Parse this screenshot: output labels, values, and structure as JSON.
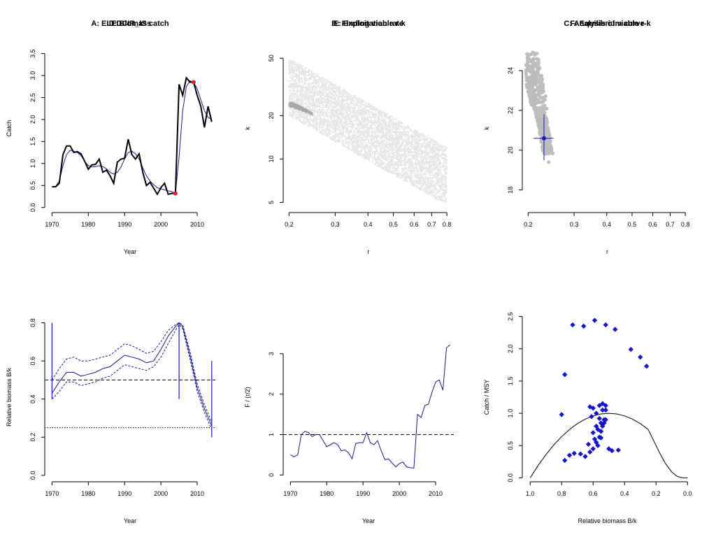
{
  "colors": {
    "catch": "#000000",
    "smooth": "#1a1a8c",
    "red": "#e0202a",
    "blue": "#1515c8",
    "lightgrey": "#e6e6e6",
    "midgrey": "#a8a8a8",
    "viable": "#bdbdbd"
  },
  "chart_data": [
    {
      "id": "A",
      "type": "line",
      "title": "A:  ELEDCIR_IS catch",
      "xlabel": "Year",
      "ylabel": "Catch",
      "xlim": [
        1968,
        2015
      ],
      "ylim": [
        -0.1,
        3.7
      ],
      "xticks": [
        1970,
        1980,
        1990,
        2000,
        2010
      ],
      "yticks": [
        0.0,
        0.5,
        1.0,
        1.5,
        2.0,
        2.5,
        3.0,
        3.5
      ],
      "ytick_labels": [
        "0.0",
        "0.5",
        "1.0",
        "1.5",
        "2.0",
        "2.5",
        "3.0",
        "3.5"
      ],
      "series": [
        {
          "kind": "catch",
          "x": [
            1970,
            1971,
            1972,
            1973,
            1974,
            1975,
            1976,
            1977,
            1978,
            1979,
            1980,
            1981,
            1982,
            1983,
            1984,
            1985,
            1986,
            1987,
            1988,
            1989,
            1990,
            1991,
            1992,
            1993,
            1994,
            1995,
            1996,
            1997,
            1998,
            1999,
            2000,
            2001,
            2002,
            2003,
            2004,
            2005,
            2006,
            2007,
            2008,
            2009,
            2010,
            2011,
            2012,
            2013,
            2014
          ],
          "y": [
            0.47,
            0.47,
            0.55,
            1.2,
            1.4,
            1.4,
            1.25,
            1.27,
            1.22,
            1.05,
            0.87,
            0.97,
            0.98,
            1.1,
            0.8,
            0.85,
            0.72,
            0.55,
            1.03,
            1.1,
            1.12,
            1.55,
            1.2,
            1.1,
            1.22,
            0.8,
            0.5,
            0.57,
            0.44,
            0.3,
            0.45,
            0.55,
            0.3,
            0.32,
            0.32,
            2.8,
            2.55,
            2.95,
            2.85,
            2.85,
            2.55,
            2.3,
            1.82,
            2.3,
            1.95
          ]
        },
        {
          "kind": "smooth",
          "x": [
            1970,
            1971,
            1972,
            1973,
            1974,
            1975,
            1976,
            1977,
            1978,
            1979,
            1980,
            1981,
            1982,
            1983,
            1984,
            1985,
            1986,
            1987,
            1988,
            1989,
            1990,
            1991,
            1992,
            1993,
            1994,
            1995,
            1996,
            1997,
            1998,
            1999,
            2000,
            2001,
            2002,
            2003,
            2004,
            2005,
            2006,
            2007,
            2008,
            2009,
            2010,
            2011,
            2012,
            2013,
            2014
          ],
          "y": [
            0.47,
            0.48,
            0.6,
            0.95,
            1.2,
            1.3,
            1.28,
            1.25,
            1.18,
            1.05,
            0.95,
            0.92,
            0.93,
            0.95,
            0.93,
            0.88,
            0.8,
            0.76,
            0.8,
            0.92,
            1.1,
            1.25,
            1.28,
            1.22,
            1.1,
            0.9,
            0.72,
            0.6,
            0.52,
            0.45,
            0.42,
            0.4,
            0.38,
            0.36,
            0.32,
            1.15,
            2.2,
            2.75,
            2.88,
            2.85,
            2.7,
            2.45,
            2.2,
            2.05,
            2.0
          ]
        }
      ],
      "points": [
        {
          "x": 2004,
          "y": 0.32
        },
        {
          "x": 2009,
          "y": 2.85
        }
      ]
    },
    {
      "id": "B",
      "type": "scatter",
      "title": "B: Finding viable r-k",
      "xlabel": "r",
      "ylabel": "k",
      "xscale": "log",
      "yscale": "log",
      "xlim": [
        0.19,
        0.85
      ],
      "ylim": [
        4.3,
        62
      ],
      "xticks": [
        0.2,
        0.3,
        0.4,
        0.5,
        0.6,
        0.7,
        0.8
      ],
      "xtick_labels": [
        "0.2",
        "0.3",
        "0.4",
        "0.5",
        "0.6",
        "0.7",
        "0.8"
      ],
      "yticks": [
        5,
        10,
        20,
        50
      ],
      "cloud": {
        "r_range": [
          0.2,
          0.8
        ],
        "k_upper_at": [
          [
            0.2,
            50
          ],
          [
            0.8,
            12
          ]
        ],
        "k_lower_at": [
          [
            0.2,
            20
          ],
          [
            0.8,
            4.8
          ]
        ]
      },
      "viable": {
        "r_range": [
          0.2,
          0.245
        ],
        "k_range": [
          20.5,
          24.5
        ]
      }
    },
    {
      "id": "C",
      "type": "scatter",
      "title": "C: Analysis of viable r-k",
      "xlabel": "r",
      "ylabel": "k",
      "xscale": "log",
      "xlim": [
        0.19,
        0.85
      ],
      "ylim": [
        16.9,
        25.3
      ],
      "xticks": [
        0.2,
        0.3,
        0.4,
        0.5,
        0.6,
        0.7,
        0.8
      ],
      "xtick_labels": [
        "0.2",
        "0.3",
        "0.4",
        "0.5",
        "0.6",
        "0.7",
        "0.8"
      ],
      "yticks": [
        18,
        20,
        22,
        24
      ],
      "estimate": {
        "r": 0.23,
        "k": 20.6,
        "r_ci": [
          0.21,
          0.25
        ],
        "k_ci": [
          19.5,
          21.8
        ]
      }
    },
    {
      "id": "D",
      "type": "line",
      "title": "D: Biomass",
      "xlabel": "Year",
      "ylabel": "Relative biomass B/k",
      "xlim": [
        1968,
        2015
      ],
      "ylim": [
        -0.03,
        0.85
      ],
      "xticks": [
        1970,
        1980,
        1990,
        2000,
        2010
      ],
      "yticks": [
        0.0,
        0.2,
        0.4,
        0.6,
        0.8
      ],
      "ytick_labels": [
        "0.0",
        "0.2",
        "0.4",
        "0.6",
        "0.8"
      ],
      "x": [
        1970,
        1972,
        1974,
        1976,
        1978,
        1980,
        1982,
        1984,
        1986,
        1988,
        1990,
        1992,
        1994,
        1996,
        1998,
        2000,
        2002,
        2004,
        2005,
        2006,
        2008,
        2010,
        2012,
        2014
      ],
      "median": [
        0.43,
        0.49,
        0.54,
        0.54,
        0.52,
        0.53,
        0.54,
        0.56,
        0.57,
        0.6,
        0.63,
        0.62,
        0.61,
        0.59,
        0.6,
        0.66,
        0.73,
        0.78,
        0.8,
        0.78,
        0.63,
        0.46,
        0.35,
        0.26
      ],
      "upper": [
        0.5,
        0.56,
        0.61,
        0.62,
        0.6,
        0.6,
        0.61,
        0.62,
        0.63,
        0.66,
        0.69,
        0.68,
        0.66,
        0.64,
        0.65,
        0.7,
        0.76,
        0.79,
        0.8,
        0.79,
        0.65,
        0.48,
        0.37,
        0.28
      ],
      "lower": [
        0.4,
        0.44,
        0.49,
        0.49,
        0.47,
        0.48,
        0.49,
        0.51,
        0.52,
        0.55,
        0.58,
        0.57,
        0.56,
        0.55,
        0.57,
        0.62,
        0.69,
        0.76,
        0.79,
        0.77,
        0.61,
        0.44,
        0.33,
        0.24
      ],
      "prior_ranges": [
        {
          "x": 1970,
          "range": [
            0.4,
            0.8
          ]
        },
        {
          "x": 2005,
          "range": [
            0.4,
            0.8
          ]
        },
        {
          "x": 2014,
          "range": [
            0.2,
            0.6
          ]
        }
      ],
      "hlines": [
        {
          "y": 0.5,
          "style": "dashed"
        },
        {
          "y": 0.25,
          "style": "dotted"
        }
      ]
    },
    {
      "id": "E",
      "type": "line",
      "title": "E: Exploitation rate",
      "xlabel": "Year",
      "ylabel": "F / (r/2)",
      "xlim": [
        1968,
        2015
      ],
      "ylim": [
        -0.15,
        4.0
      ],
      "xticks": [
        1970,
        1980,
        1990,
        2000,
        2010
      ],
      "yticks": [
        0,
        1,
        2,
        3
      ],
      "x": [
        1970,
        1971,
        1972,
        1973,
        1974,
        1975,
        1976,
        1977,
        1978,
        1979,
        1980,
        1981,
        1982,
        1983,
        1984,
        1985,
        1986,
        1987,
        1988,
        1989,
        1990,
        1991,
        1992,
        1993,
        1994,
        1995,
        1996,
        1997,
        1998,
        1999,
        2000,
        2001,
        2002,
        2003,
        2004,
        2005,
        2006,
        2007,
        2008,
        2009,
        2010,
        2011,
        2012,
        2013,
        2014
      ],
      "y": [
        0.5,
        0.45,
        0.5,
        1.0,
        1.08,
        1.05,
        0.95,
        1.0,
        1.0,
        0.85,
        0.7,
        0.75,
        0.8,
        0.75,
        0.6,
        0.62,
        0.55,
        0.4,
        0.78,
        0.8,
        0.8,
        1.05,
        0.8,
        0.75,
        0.85,
        0.6,
        0.38,
        0.4,
        0.3,
        0.2,
        0.28,
        0.32,
        0.2,
        0.18,
        0.17,
        1.5,
        1.42,
        1.72,
        1.75,
        2.05,
        2.3,
        2.35,
        2.1,
        3.15,
        3.22
      ],
      "hline": {
        "y": 1.0,
        "style": "dashed"
      }
    },
    {
      "id": "F",
      "type": "scatter",
      "title": "F: Equilibrium curve",
      "xlabel": "Relative biomass B/k",
      "ylabel": "Catch / MSY",
      "xlim": [
        1.05,
        -0.03
      ],
      "ylim": [
        -0.05,
        2.55
      ],
      "xticks": [
        1.0,
        0.8,
        0.6,
        0.4,
        0.2,
        0.0
      ],
      "xtick_labels": [
        "1.0",
        "0.8",
        "0.6",
        "0.4",
        "0.2",
        "0.0"
      ],
      "yticks": [
        0.0,
        0.5,
        1.0,
        1.5,
        2.0,
        2.5
      ],
      "ytick_labels": [
        "0.0",
        "0.5",
        "1.0",
        "1.5",
        "2.0",
        "2.5"
      ],
      "curve_x": [
        1.0,
        0.95,
        0.9,
        0.85,
        0.8,
        0.75,
        0.7,
        0.65,
        0.6,
        0.55,
        0.5,
        0.45,
        0.4,
        0.35,
        0.3,
        0.25,
        0.22,
        0.18,
        0.14,
        0.1,
        0.07,
        0.05,
        0.03,
        0.0
      ],
      "curve_y": [
        0.0,
        0.19,
        0.36,
        0.51,
        0.64,
        0.75,
        0.84,
        0.91,
        0.96,
        0.99,
        1.0,
        0.99,
        0.96,
        0.91,
        0.84,
        0.75,
        0.6,
        0.4,
        0.22,
        0.09,
        0.03,
        0.01,
        0.0,
        0.0
      ],
      "points_x": [
        0.8,
        0.78,
        0.73,
        0.66,
        0.59,
        0.52,
        0.46,
        0.36,
        0.3,
        0.26,
        0.78,
        0.75,
        0.72,
        0.68,
        0.65,
        0.62,
        0.6,
        0.58,
        0.56,
        0.55,
        0.54,
        0.53,
        0.52,
        0.62,
        0.6,
        0.58,
        0.56,
        0.54,
        0.52,
        0.6,
        0.59,
        0.57,
        0.55,
        0.53,
        0.61,
        0.58,
        0.56,
        0.54,
        0.5,
        0.48,
        0.44,
        0.63,
        0.57,
        0.55,
        0.52
      ],
      "points_y": [
        0.98,
        1.6,
        2.37,
        2.35,
        2.44,
        2.37,
        2.3,
        1.99,
        1.87,
        1.73,
        0.27,
        0.35,
        0.38,
        0.37,
        0.33,
        0.4,
        0.45,
        0.55,
        0.63,
        0.72,
        0.8,
        0.85,
        0.9,
        1.1,
        1.08,
        1.0,
        1.12,
        1.15,
        1.12,
        0.7,
        0.6,
        0.75,
        0.85,
        0.9,
        0.95,
        0.8,
        0.92,
        1.05,
        0.45,
        0.42,
        0.43,
        0.52,
        0.5,
        0.62,
        1.05
      ]
    }
  ]
}
